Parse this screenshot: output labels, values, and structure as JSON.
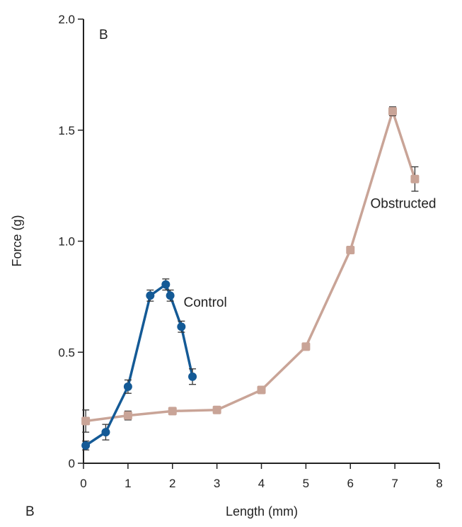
{
  "chart_data": {
    "type": "line",
    "panel_label_inside": "B",
    "panel_label_bottom": "B",
    "xlabel": "Length (mm)",
    "ylabel": "Force (g)",
    "xlim": [
      0,
      8
    ],
    "ylim": [
      0,
      2.0
    ],
    "x_ticks": [
      "0",
      "1",
      "2",
      "3",
      "4",
      "5",
      "6",
      "7",
      "8"
    ],
    "y_ticks": [
      "0",
      "0.5",
      "1.0",
      "1.5",
      "2.0"
    ],
    "grid": false,
    "series": [
      {
        "name": "Obstructed",
        "color": "#c9a497",
        "marker": "square",
        "points": [
          {
            "x": 0.05,
            "y": 0.19,
            "err": 0.05
          },
          {
            "x": 1.0,
            "y": 0.215,
            "err": 0.02
          },
          {
            "x": 2.0,
            "y": 0.235,
            "err": 0.015
          },
          {
            "x": 3.0,
            "y": 0.24,
            "err": 0.015
          },
          {
            "x": 4.0,
            "y": 0.33,
            "err": 0.015
          },
          {
            "x": 5.0,
            "y": 0.525,
            "err": 0.015
          },
          {
            "x": 6.0,
            "y": 0.96,
            "err": 0.015
          },
          {
            "x": 6.95,
            "y": 1.585,
            "err": 0.02
          },
          {
            "x": 7.45,
            "y": 1.28,
            "err": 0.055
          }
        ]
      },
      {
        "name": "Control",
        "color": "#145a96",
        "marker": "circle",
        "points": [
          {
            "x": 0.05,
            "y": 0.08,
            "err": 0.02
          },
          {
            "x": 0.5,
            "y": 0.14,
            "err": 0.035
          },
          {
            "x": 1.0,
            "y": 0.345,
            "err": 0.03
          },
          {
            "x": 1.5,
            "y": 0.755,
            "err": 0.025
          },
          {
            "x": 1.85,
            "y": 0.805,
            "err": 0.025
          },
          {
            "x": 1.95,
            "y": 0.755,
            "err": 0.025
          },
          {
            "x": 2.2,
            "y": 0.615,
            "err": 0.025
          },
          {
            "x": 2.45,
            "y": 0.39,
            "err": 0.035
          }
        ]
      }
    ],
    "annotations": [
      {
        "text": "Control",
        "x": 2.25,
        "y": 0.705
      },
      {
        "text": "Obstructed",
        "x": 6.45,
        "y": 1.15
      }
    ]
  }
}
